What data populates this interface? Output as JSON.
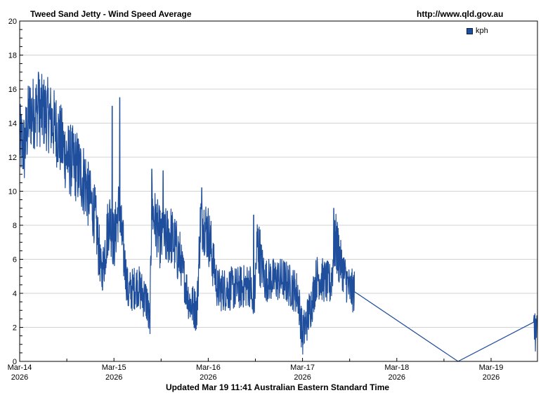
{
  "header": {
    "title": "Tweed Sand Jetty - Wind Speed Average",
    "source": "http://www.qld.gov.au"
  },
  "legend": {
    "label": "kph",
    "color": "#1f4e9c"
  },
  "footer": {
    "updated": "Updated Mar 19 11:41 Australian Eastern Standard Time"
  },
  "chart_data": {
    "type": "line",
    "title": "Tweed Sand Jetty - Wind Speed Average",
    "xlabel": "",
    "ylabel": "",
    "ylim": [
      0,
      20
    ],
    "yticks": [
      0,
      2,
      4,
      6,
      8,
      10,
      12,
      14,
      16,
      18,
      20
    ],
    "grid": true,
    "legend_position": "top-right",
    "x_ticks": [
      {
        "label": "Mar-14",
        "sub": "2026",
        "day": 0
      },
      {
        "label": "Mar-15",
        "sub": "2026",
        "day": 1
      },
      {
        "label": "Mar-16",
        "sub": "2026",
        "day": 2
      },
      {
        "label": "Mar-17",
        "sub": "2026",
        "day": 3
      },
      {
        "label": "Mar-18",
        "sub": "2026",
        "day": 4
      },
      {
        "label": "Mar-19",
        "sub": "2026",
        "day": 5
      }
    ],
    "x_range_days": [
      0,
      5.49
    ],
    "series": [
      {
        "name": "kph",
        "color": "#1f4e9c",
        "unit": "kph",
        "trend_points_day_value": [
          [
            0.0,
            13.0
          ],
          [
            0.05,
            12.5
          ],
          [
            0.1,
            14.5
          ],
          [
            0.2,
            14.8
          ],
          [
            0.3,
            14.5
          ],
          [
            0.4,
            13.5
          ],
          [
            0.5,
            12.0
          ],
          [
            0.6,
            11.5
          ],
          [
            0.7,
            10.5
          ],
          [
            0.8,
            8.5
          ],
          [
            0.87,
            5.0
          ],
          [
            0.95,
            8.5
          ],
          [
            1.0,
            7.0
          ],
          [
            1.05,
            9.0
          ],
          [
            1.1,
            6.5
          ],
          [
            1.15,
            4.0
          ],
          [
            1.25,
            4.5
          ],
          [
            1.35,
            3.5
          ],
          [
            1.38,
            2.0
          ],
          [
            1.4,
            9.0
          ],
          [
            1.5,
            7.0
          ],
          [
            1.6,
            7.5
          ],
          [
            1.7,
            6.0
          ],
          [
            1.8,
            3.5
          ],
          [
            1.88,
            3.0
          ],
          [
            1.92,
            8.5
          ],
          [
            2.0,
            7.5
          ],
          [
            2.05,
            6.0
          ],
          [
            2.1,
            4.2
          ],
          [
            2.3,
            4.3
          ],
          [
            2.45,
            4.5
          ],
          [
            2.48,
            2.5
          ],
          [
            2.52,
            7.0
          ],
          [
            2.6,
            4.8
          ],
          [
            2.8,
            4.8
          ],
          [
            2.95,
            4.0
          ],
          [
            3.0,
            1.5
          ],
          [
            3.05,
            2.5
          ],
          [
            3.1,
            3.5
          ],
          [
            3.15,
            5.0
          ],
          [
            3.3,
            4.5
          ],
          [
            3.35,
            7.0
          ],
          [
            3.42,
            5.5
          ],
          [
            3.5,
            4.2
          ],
          [
            3.55,
            4.1
          ],
          [
            4.65,
            0.0
          ],
          [
            5.45,
            2.3
          ],
          [
            5.48,
            1.5
          ],
          [
            5.49,
            2.5
          ]
        ],
        "observed_max": 17.0,
        "observed_min": 0.0,
        "peak_values": [
          {
            "day": 0.2,
            "value": 17.0
          },
          {
            "day": 1.06,
            "value": 15.5
          },
          {
            "day": 0.98,
            "value": 15.0
          },
          {
            "day": 1.4,
            "value": 11.3
          },
          {
            "day": 1.52,
            "value": 11.2
          },
          {
            "day": 1.93,
            "value": 10.2
          },
          {
            "day": 2.48,
            "value": 8.6
          },
          {
            "day": 3.33,
            "value": 9.0
          }
        ],
        "gap_segment": {
          "from": [
            3.55,
            4.1
          ],
          "via": [
            4.65,
            0.0
          ],
          "to": [
            5.45,
            2.3
          ]
        }
      }
    ]
  }
}
